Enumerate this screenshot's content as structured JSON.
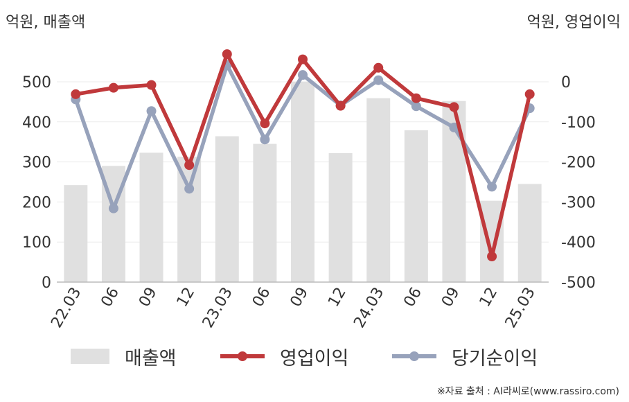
{
  "left_unit_label": "억원, 매출액",
  "right_unit_label": "억원, 영업이익",
  "source_text": "※자료 출처 : AI라씨로(www.rassiro.com)",
  "chart_data": {
    "type": "bar+line",
    "categories": [
      "22.03",
      "06",
      "09",
      "12",
      "23.03",
      "06",
      "09",
      "12",
      "24.03",
      "06",
      "09",
      "12",
      "25.03"
    ],
    "y_left": {
      "ticks": [
        0,
        100,
        200,
        300,
        400,
        500
      ],
      "range": [
        0,
        560
      ]
    },
    "y_right": {
      "ticks": [
        0,
        -100,
        -200,
        -300,
        -400,
        -500
      ],
      "range": [
        -500,
        60
      ]
    },
    "grid": true,
    "legend_position": "bottom",
    "series": [
      {
        "name": "매출액",
        "type": "bar",
        "axis": "left",
        "color": "#e0e0e0",
        "values": [
          242,
          290,
          323,
          313,
          364,
          345,
          500,
          322,
          459,
          379,
          452,
          203,
          245
        ]
      },
      {
        "name": "영업이익",
        "type": "line",
        "axis": "right",
        "color": "#c0393b",
        "values": [
          -31,
          -15,
          -8,
          -208,
          69,
          -104,
          56,
          -60,
          35,
          -41,
          -63,
          -436,
          -31
        ]
      },
      {
        "name": "당기순이익",
        "type": "line",
        "axis": "right",
        "color": "#97a2bb",
        "values": [
          -44,
          -316,
          -73,
          -267,
          42,
          -144,
          17,
          -59,
          4,
          -61,
          -114,
          -262,
          -66
        ]
      }
    ]
  }
}
